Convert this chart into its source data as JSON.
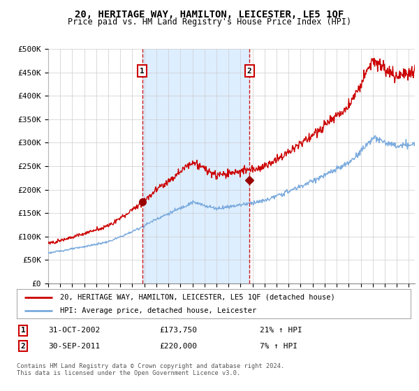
{
  "title": "20, HERITAGE WAY, HAMILTON, LEICESTER, LE5 1QF",
  "subtitle": "Price paid vs. HM Land Registry's House Price Index (HPI)",
  "legend_line1": "20, HERITAGE WAY, HAMILTON, LEICESTER, LE5 1QF (detached house)",
  "legend_line2": "HPI: Average price, detached house, Leicester",
  "annotation1_date": "31-OCT-2002",
  "annotation1_price": "£173,750",
  "annotation1_hpi": "21% ↑ HPI",
  "annotation2_date": "30-SEP-2011",
  "annotation2_price": "£220,000",
  "annotation2_hpi": "7% ↑ HPI",
  "footer": "Contains HM Land Registry data © Crown copyright and database right 2024.\nThis data is licensed under the Open Government Licence v3.0.",
  "red_color": "#cc0000",
  "blue_color": "#7aaadd",
  "shade_color": "#ddeeff",
  "plot_bg_color": "#ffffff",
  "grid_color": "#cccccc",
  "ylim": [
    0,
    500000
  ],
  "yticks": [
    0,
    50000,
    100000,
    150000,
    200000,
    250000,
    300000,
    350000,
    400000,
    450000,
    500000
  ],
  "purchase1_year": 2002.83,
  "purchase1_price": 173750,
  "purchase2_year": 2011.75,
  "purchase2_price": 220000,
  "xmin": 1995,
  "xmax": 2025.5
}
